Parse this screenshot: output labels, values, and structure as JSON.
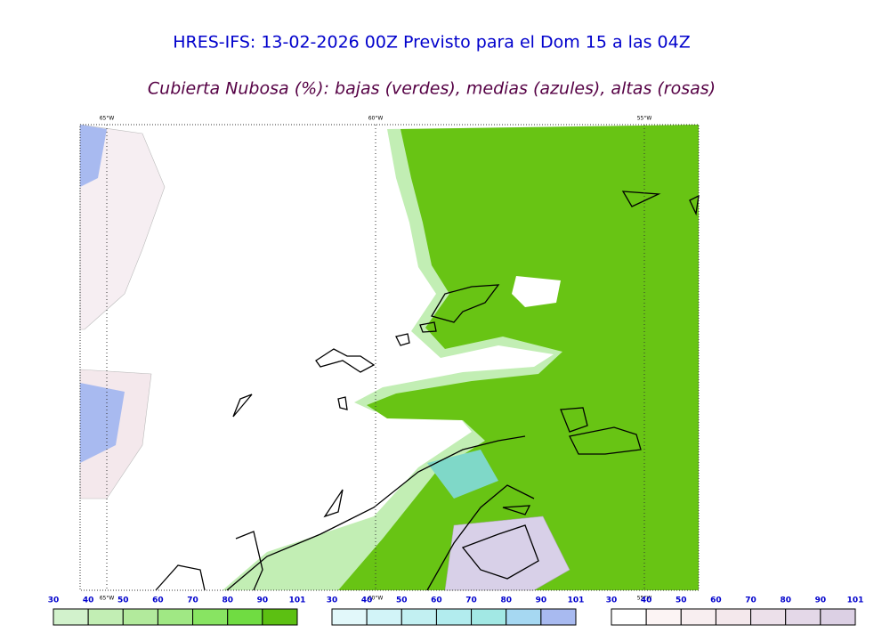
{
  "header": {
    "title": "HRES-IFS: 13-02-2026 00Z Previsto para el Dom 15 a las 04Z",
    "subtitle": "Cubierta Nubosa (%): bajas (verdes), medias (azules), altas (rosas)"
  },
  "map": {
    "top_labels": [
      "65°W",
      "60°W",
      "55°W"
    ],
    "bottom_labels": [
      "65°W",
      "60°W",
      "55°W"
    ]
  },
  "colorbars": [
    {
      "labels": [
        30,
        40,
        50,
        60,
        70,
        80,
        90,
        101
      ],
      "colors": [
        "#d2f2cc",
        "#c2eeb4",
        "#b2ea9c",
        "#a0e884",
        "#88e462",
        "#70dc42",
        "#5cc012"
      ]
    },
    {
      "labels": [
        30,
        40,
        50,
        60,
        70,
        80,
        90,
        101
      ],
      "colors": [
        "#e2f8fa",
        "#d2f4f8",
        "#c2f0f2",
        "#b2ecee",
        "#a2e8e4",
        "#a6d8f2",
        "#a8baf0"
      ]
    },
    {
      "labels": [
        30,
        40,
        50,
        60,
        70,
        80,
        90,
        101
      ],
      "colors": [
        "#ffffff",
        "#fcf4f4",
        "#f8eef0",
        "#f4e8ec",
        "#ece0ea",
        "#e4d8e8",
        "#dcd0e4"
      ]
    }
  ]
}
